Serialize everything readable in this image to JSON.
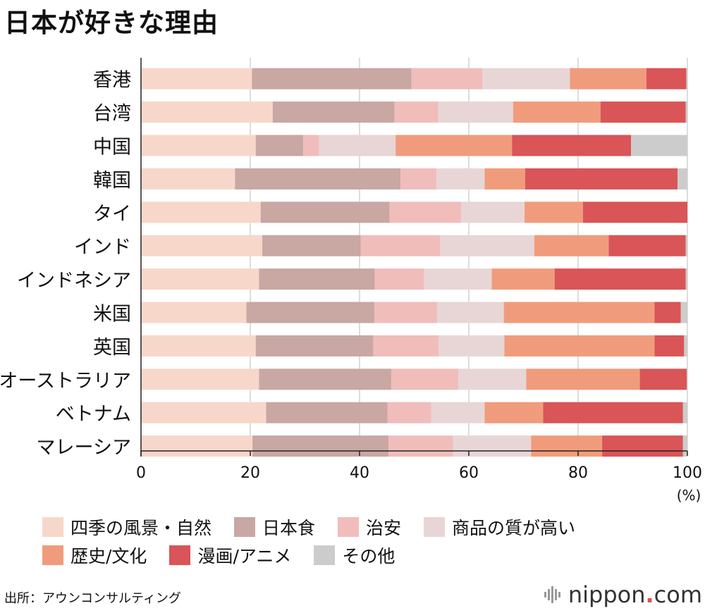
{
  "header": {
    "title": "日本が好きな理由"
  },
  "chart_data": {
    "type": "bar",
    "orientation": "horizontal",
    "stacked": true,
    "title": "日本が好きな理由",
    "xlabel": "(%)",
    "ylabel": "",
    "xlim": [
      0,
      100
    ],
    "xticks": [
      "0",
      "20",
      "40",
      "60",
      "80",
      "100"
    ],
    "grid": true,
    "categories": [
      "香港",
      "台湾",
      "中国",
      "韓国",
      "タイ",
      "インド",
      "インドネシア",
      "米国",
      "英国",
      "オーストラリア",
      "ベトナム",
      "マレーシア"
    ],
    "series": [
      {
        "name": "四季の風景・自然",
        "color": "#f8d7cb",
        "values": [
          20.3,
          24.1,
          21.0,
          17.2,
          21.9,
          22.2,
          21.6,
          19.3,
          21.0,
          21.6,
          22.9,
          20.4
        ]
      },
      {
        "name": "日本食",
        "color": "#c9a7a2",
        "values": [
          29.2,
          22.3,
          8.7,
          30.3,
          23.6,
          18.0,
          21.2,
          23.4,
          21.5,
          24.2,
          22.2,
          24.9
        ]
      },
      {
        "name": "治安",
        "color": "#f0bdbb",
        "values": [
          13.0,
          8.0,
          2.9,
          6.6,
          13.1,
          14.6,
          9.0,
          11.5,
          12.0,
          12.3,
          8.0,
          11.8
        ]
      },
      {
        "name": "商品の質が高い",
        "color": "#e8d6d6",
        "values": [
          16.0,
          13.7,
          14.0,
          8.8,
          11.6,
          17.2,
          12.4,
          12.2,
          12.0,
          12.4,
          9.8,
          14.3
        ]
      },
      {
        "name": "歴史/文化",
        "color": "#f09c7c",
        "values": [
          14.0,
          16.0,
          21.3,
          7.4,
          10.7,
          13.6,
          11.5,
          27.6,
          27.5,
          20.8,
          10.7,
          13.0
        ]
      },
      {
        "name": "漫画/アニメ",
        "color": "#d95557",
        "values": [
          7.3,
          15.6,
          21.8,
          27.9,
          19.1,
          14.1,
          24.0,
          4.8,
          5.4,
          8.6,
          25.6,
          14.8
        ]
      },
      {
        "name": "その他",
        "color": "#cccccc",
        "values": [
          0.2,
          0.3,
          10.3,
          1.8,
          0.0,
          0.3,
          0.3,
          1.2,
          0.6,
          0.1,
          0.8,
          0.8
        ]
      }
    ],
    "legend_position": "bottom"
  },
  "footer": {
    "source": "出所：アウンコンサルティング",
    "logo_main": "nippon",
    "logo_dot": ".",
    "logo_com": "com"
  }
}
